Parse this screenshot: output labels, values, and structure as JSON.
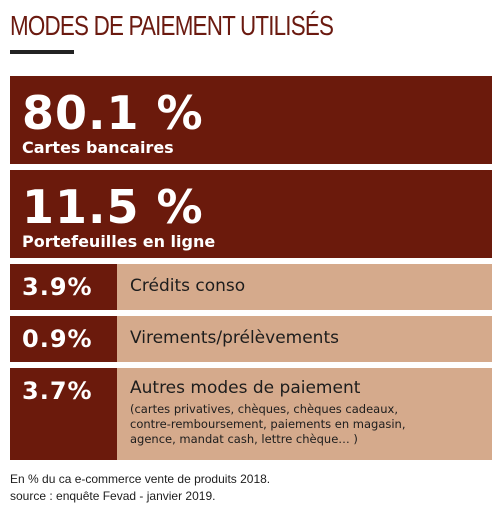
{
  "title": "MODES DE PAIEMENT UTILISÉS",
  "chart_data": {
    "type": "table",
    "title": "MODES DE PAIEMENT UTILISÉS",
    "unit": "%",
    "rows": [
      {
        "value": 80.1,
        "display": "80.1 %",
        "label": "Cartes bancaires",
        "detail": ""
      },
      {
        "value": 11.5,
        "display": "11.5 %",
        "label": "Portefeuilles en ligne",
        "detail": ""
      },
      {
        "value": 3.9,
        "display": "3.9%",
        "label": "Crédits conso",
        "detail": ""
      },
      {
        "value": 0.9,
        "display": "0.9%",
        "label": "Virements/prélèvements",
        "detail": ""
      },
      {
        "value": 3.7,
        "display": "3.7%",
        "label": "Autres modes de paiement",
        "detail": "(cartes privatives, chèques, chèques cadeaux, contre-remboursement, paiements en magasin, agence, mandat cash, lettre chèque… )"
      }
    ]
  },
  "footnote": "En % du ca e-commerce vente de produits 2018.",
  "source": "source  : enquête Fevad - janvier 2019.",
  "colors": {
    "dark": "#6b1a0c",
    "light": "#d5aa8c",
    "title": "#6b1a10"
  }
}
